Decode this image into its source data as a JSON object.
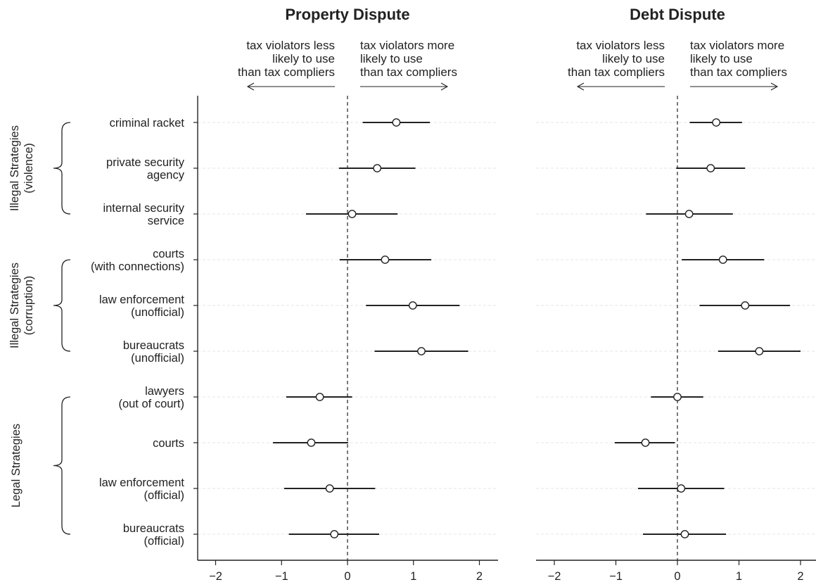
{
  "chart_data": {
    "type": "scatter",
    "style": "coefficient plot with confidence intervals",
    "rows": [
      {
        "lines": [
          "criminal racket"
        ]
      },
      {
        "lines": [
          "private security",
          "agency"
        ]
      },
      {
        "lines": [
          "internal security",
          "service"
        ]
      },
      {
        "lines": [
          "courts",
          "(with connections)"
        ]
      },
      {
        "lines": [
          "law enforcement",
          "(unofficial)"
        ]
      },
      {
        "lines": [
          "bureaucrats",
          "(unofficial)"
        ]
      },
      {
        "lines": [
          "lawyers",
          "(out of court)"
        ]
      },
      {
        "lines": [
          "courts"
        ]
      },
      {
        "lines": [
          "law enforcement",
          "(official)"
        ]
      },
      {
        "lines": [
          "bureaucrats",
          "(official)"
        ]
      }
    ],
    "groups": [
      {
        "lines": [
          "Illegal Strategies",
          "(violence)"
        ],
        "first_row": 0,
        "last_row": 2
      },
      {
        "lines": [
          "Illegal Strategies",
          "(corruption)"
        ],
        "first_row": 3,
        "last_row": 5
      },
      {
        "lines": [
          "Legal Strategies"
        ],
        "first_row": 6,
        "last_row": 9
      }
    ],
    "panels": [
      {
        "title": "Property Dispute",
        "annotation_left": [
          "tax violators less",
          "likely to use",
          "than tax compliers"
        ],
        "annotation_right": [
          "tax violators more",
          "likely to use",
          "than tax compliers"
        ],
        "xlim": [
          -2.3,
          2.3
        ],
        "xticks": [
          "−2",
          "−1",
          "0",
          "1",
          "2"
        ],
        "points": [
          {
            "est": 0.74,
            "lo": 0.23,
            "hi": 1.25
          },
          {
            "est": 0.45,
            "lo": -0.13,
            "hi": 1.03
          },
          {
            "est": 0.07,
            "lo": -0.63,
            "hi": 0.76
          },
          {
            "est": 0.57,
            "lo": -0.12,
            "hi": 1.27
          },
          {
            "est": 0.99,
            "lo": 0.28,
            "hi": 1.7
          },
          {
            "est": 1.12,
            "lo": 0.41,
            "hi": 1.83
          },
          {
            "est": -0.42,
            "lo": -0.93,
            "hi": 0.07
          },
          {
            "est": -0.55,
            "lo": -1.13,
            "hi": 0.01
          },
          {
            "est": -0.27,
            "lo": -0.96,
            "hi": 0.42
          },
          {
            "est": -0.2,
            "lo": -0.89,
            "hi": 0.48
          }
        ]
      },
      {
        "title": "Debt Dispute",
        "annotation_left": [
          "tax violators less",
          "likely to use",
          "than tax compliers"
        ],
        "annotation_right": [
          "tax violators more",
          "likely to use",
          "than tax compliers"
        ],
        "xlim": [
          -2.3,
          2.3
        ],
        "xticks": [
          "−2",
          "−1",
          "0",
          "1",
          "2"
        ],
        "points": [
          {
            "est": 0.63,
            "lo": 0.2,
            "hi": 1.05
          },
          {
            "est": 0.54,
            "lo": -0.02,
            "hi": 1.1
          },
          {
            "est": 0.19,
            "lo": -0.51,
            "hi": 0.9
          },
          {
            "est": 0.74,
            "lo": 0.07,
            "hi": 1.41
          },
          {
            "est": 1.1,
            "lo": 0.36,
            "hi": 1.83
          },
          {
            "est": 1.33,
            "lo": 0.66,
            "hi": 2.0
          },
          {
            "est": 0.0,
            "lo": -0.43,
            "hi": 0.42
          },
          {
            "est": -0.52,
            "lo": -1.02,
            "hi": -0.04
          },
          {
            "est": 0.06,
            "lo": -0.64,
            "hi": 0.76
          },
          {
            "est": 0.12,
            "lo": -0.56,
            "hi": 0.79
          }
        ]
      }
    ],
    "reference_line": 0,
    "grid": "horizontal dashed",
    "colors": {
      "ink": "#222222",
      "grid": "#e6e6e6",
      "marker_fill": "#ffffff"
    }
  }
}
